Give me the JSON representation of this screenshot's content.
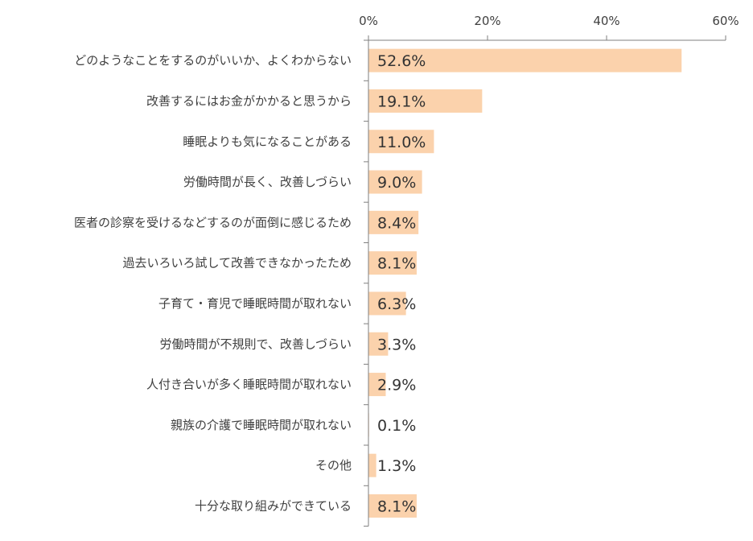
{
  "chart_data": {
    "type": "bar",
    "orientation": "horizontal",
    "categories": [
      "どのようなことをするのがいいか、よくわからない",
      "改善するにはお金がかかると思うから",
      "睡眠よりも気になることがある",
      "労働時間が長く、改善しづらい",
      "医者の診察を受けるなどするのが面倒に感じるため",
      "過去いろいろ試して改善できなかったため",
      "子育て・育児で睡眠時間が取れない",
      "労働時間が不規則で、改善しづらい",
      "人付き合いが多く睡眠時間が取れない",
      "親族の介護で睡眠時間が取れない",
      "その他",
      "十分な取り組みができている"
    ],
    "values": [
      52.6,
      19.1,
      11.0,
      9.0,
      8.4,
      8.1,
      6.3,
      3.3,
      2.9,
      0.1,
      1.3,
      8.1
    ],
    "value_labels": [
      "52.6%",
      "19.1%",
      "11.0%",
      "9.0%",
      "8.4%",
      "8.1%",
      "6.3%",
      "3.3%",
      "2.9%",
      "0.1%",
      "1.3%",
      "8.1%"
    ],
    "xlim": [
      0,
      60
    ],
    "xticks": [
      0,
      20,
      40,
      60
    ],
    "xtick_labels": [
      "0%",
      "20%",
      "40%",
      "60%"
    ],
    "axis_position": "top",
    "grid": false,
    "bar_color": "#fbd2ac",
    "axis_color": "#7f7f7f"
  }
}
